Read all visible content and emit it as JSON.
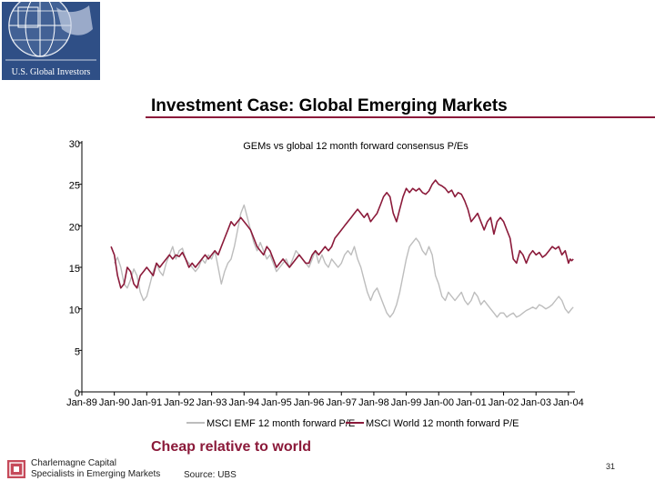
{
  "header": {
    "logo_text": "U.S. Global Investors",
    "title": "Investment Case: Global Emerging Markets"
  },
  "chart_data": {
    "type": "line",
    "title": "GEMs vs global 12 month forward consensus P/Es",
    "xlabel": "",
    "ylabel": "",
    "ylim": [
      0,
      30
    ],
    "yticks": [
      0,
      5,
      10,
      15,
      20,
      25,
      30
    ],
    "xticks": [
      "Jan-89",
      "Jan-90",
      "Jan-91",
      "Jan-92",
      "Jan-93",
      "Jan-94",
      "Jan-95",
      "Jan-96",
      "Jan-97",
      "Jan-98",
      "Jan-99",
      "Jan-00",
      "Jan-01",
      "Jan-02",
      "Jan-03",
      "Jan-04"
    ],
    "x_range": [
      1989.0,
      2004.2
    ],
    "grid": false,
    "legend_position": "bottom",
    "series": [
      {
        "name": "MSCI EMF 12 month forward P/E",
        "color": "#bdbdbd",
        "points": [
          [
            1990.0,
            15.5
          ],
          [
            1990.1,
            16.2
          ],
          [
            1990.2,
            15.0
          ],
          [
            1990.3,
            13.0
          ],
          [
            1990.4,
            12.5
          ],
          [
            1990.5,
            13.5
          ],
          [
            1990.6,
            14.8
          ],
          [
            1990.7,
            14.0
          ],
          [
            1990.8,
            12.0
          ],
          [
            1990.9,
            11.0
          ],
          [
            1991.0,
            11.5
          ],
          [
            1991.1,
            13.0
          ],
          [
            1991.2,
            14.5
          ],
          [
            1991.3,
            15.5
          ],
          [
            1991.4,
            14.5
          ],
          [
            1991.5,
            14.0
          ],
          [
            1991.6,
            15.5
          ],
          [
            1991.7,
            16.5
          ],
          [
            1991.8,
            17.5
          ],
          [
            1991.9,
            16.0
          ],
          [
            1992.0,
            17.0
          ],
          [
            1992.1,
            17.3
          ],
          [
            1992.2,
            16.0
          ],
          [
            1992.3,
            15.5
          ],
          [
            1992.4,
            15.0
          ],
          [
            1992.5,
            14.5
          ],
          [
            1992.6,
            15.0
          ],
          [
            1992.7,
            16.0
          ],
          [
            1992.8,
            15.5
          ],
          [
            1992.9,
            16.5
          ],
          [
            1993.0,
            16.0
          ],
          [
            1993.1,
            17.0
          ],
          [
            1993.2,
            15.0
          ],
          [
            1993.3,
            13.0
          ],
          [
            1993.4,
            14.5
          ],
          [
            1993.5,
            15.5
          ],
          [
            1993.6,
            16.0
          ],
          [
            1993.7,
            17.5
          ],
          [
            1993.8,
            19.5
          ],
          [
            1993.9,
            21.5
          ],
          [
            1994.0,
            22.5
          ],
          [
            1994.1,
            21.0
          ],
          [
            1994.2,
            19.5
          ],
          [
            1994.3,
            18.0
          ],
          [
            1994.4,
            17.0
          ],
          [
            1994.5,
            18.0
          ],
          [
            1994.6,
            17.0
          ],
          [
            1994.7,
            16.0
          ],
          [
            1994.8,
            16.5
          ],
          [
            1994.9,
            15.5
          ],
          [
            1995.0,
            14.5
          ],
          [
            1995.1,
            15.0
          ],
          [
            1995.2,
            15.5
          ],
          [
            1995.3,
            16.0
          ],
          [
            1995.4,
            15.0
          ],
          [
            1995.5,
            16.0
          ],
          [
            1995.6,
            17.0
          ],
          [
            1995.7,
            16.5
          ],
          [
            1995.8,
            16.0
          ],
          [
            1995.9,
            15.5
          ],
          [
            1996.0,
            15.0
          ],
          [
            1996.1,
            16.0
          ],
          [
            1996.2,
            17.0
          ],
          [
            1996.3,
            15.5
          ],
          [
            1996.4,
            16.5
          ],
          [
            1996.5,
            15.5
          ],
          [
            1996.6,
            15.0
          ],
          [
            1996.7,
            16.0
          ],
          [
            1996.8,
            15.5
          ],
          [
            1996.9,
            15.0
          ],
          [
            1997.0,
            15.5
          ],
          [
            1997.1,
            16.5
          ],
          [
            1997.2,
            17.0
          ],
          [
            1997.3,
            16.5
          ],
          [
            1997.4,
            17.5
          ],
          [
            1997.5,
            16.0
          ],
          [
            1997.6,
            15.0
          ],
          [
            1997.7,
            13.5
          ],
          [
            1997.8,
            12.0
          ],
          [
            1997.9,
            11.0
          ],
          [
            1998.0,
            12.0
          ],
          [
            1998.1,
            12.5
          ],
          [
            1998.2,
            11.5
          ],
          [
            1998.3,
            10.5
          ],
          [
            1998.4,
            9.5
          ],
          [
            1998.5,
            9.0
          ],
          [
            1998.6,
            9.5
          ],
          [
            1998.7,
            10.5
          ],
          [
            1998.8,
            12.0
          ],
          [
            1998.9,
            14.0
          ],
          [
            1999.0,
            16.0
          ],
          [
            1999.1,
            17.5
          ],
          [
            1999.2,
            18.0
          ],
          [
            1999.3,
            18.5
          ],
          [
            1999.4,
            18.0
          ],
          [
            1999.5,
            17.0
          ],
          [
            1999.6,
            16.5
          ],
          [
            1999.7,
            17.5
          ],
          [
            1999.8,
            16.5
          ],
          [
            1999.9,
            14.0
          ],
          [
            2000.0,
            13.0
          ],
          [
            2000.1,
            11.5
          ],
          [
            2000.2,
            11.0
          ],
          [
            2000.3,
            12.0
          ],
          [
            2000.4,
            11.5
          ],
          [
            2000.5,
            11.0
          ],
          [
            2000.6,
            11.5
          ],
          [
            2000.7,
            12.0
          ],
          [
            2000.8,
            11.0
          ],
          [
            2000.9,
            10.5
          ],
          [
            2001.0,
            11.0
          ],
          [
            2001.1,
            12.0
          ],
          [
            2001.2,
            11.5
          ],
          [
            2001.3,
            10.5
          ],
          [
            2001.4,
            11.0
          ],
          [
            2001.5,
            10.5
          ],
          [
            2001.6,
            10.0
          ],
          [
            2001.7,
            9.5
          ],
          [
            2001.8,
            9.0
          ],
          [
            2001.9,
            9.5
          ],
          [
            2002.0,
            9.5
          ],
          [
            2002.1,
            9.0
          ],
          [
            2002.2,
            9.3
          ],
          [
            2002.3,
            9.5
          ],
          [
            2002.4,
            9.0
          ],
          [
            2002.5,
            9.2
          ],
          [
            2002.6,
            9.5
          ],
          [
            2002.7,
            9.8
          ],
          [
            2002.8,
            10.0
          ],
          [
            2002.9,
            10.2
          ],
          [
            2003.0,
            10.0
          ],
          [
            2003.1,
            10.5
          ],
          [
            2003.2,
            10.3
          ],
          [
            2003.3,
            10.0
          ],
          [
            2003.4,
            10.2
          ],
          [
            2003.5,
            10.5
          ],
          [
            2003.6,
            11.0
          ],
          [
            2003.7,
            11.5
          ],
          [
            2003.8,
            11.0
          ],
          [
            2003.9,
            10.0
          ],
          [
            2004.0,
            9.5
          ],
          [
            2004.1,
            10.0
          ],
          [
            2004.15,
            10.2
          ]
        ]
      },
      {
        "name": "MSCI World 12 month forward P/E",
        "color": "#8b1a3a",
        "points": [
          [
            1989.9,
            17.5
          ],
          [
            1990.0,
            16.5
          ],
          [
            1990.1,
            14.0
          ],
          [
            1990.2,
            12.5
          ],
          [
            1990.3,
            13.0
          ],
          [
            1990.4,
            15.0
          ],
          [
            1990.5,
            14.5
          ],
          [
            1990.6,
            13.0
          ],
          [
            1990.7,
            12.5
          ],
          [
            1990.8,
            14.0
          ],
          [
            1990.9,
            14.5
          ],
          [
            1991.0,
            15.0
          ],
          [
            1991.1,
            14.5
          ],
          [
            1991.2,
            14.0
          ],
          [
            1991.3,
            15.5
          ],
          [
            1991.4,
            15.0
          ],
          [
            1991.5,
            15.5
          ],
          [
            1991.6,
            16.0
          ],
          [
            1991.7,
            16.5
          ],
          [
            1991.8,
            16.0
          ],
          [
            1991.9,
            16.5
          ],
          [
            1992.0,
            16.3
          ],
          [
            1992.1,
            16.8
          ],
          [
            1992.2,
            16.0
          ],
          [
            1992.3,
            15.0
          ],
          [
            1992.4,
            15.5
          ],
          [
            1992.5,
            15.0
          ],
          [
            1992.6,
            15.5
          ],
          [
            1992.7,
            16.0
          ],
          [
            1992.8,
            16.5
          ],
          [
            1992.9,
            16.0
          ],
          [
            1993.0,
            16.5
          ],
          [
            1993.1,
            17.0
          ],
          [
            1993.2,
            16.5
          ],
          [
            1993.3,
            17.5
          ],
          [
            1993.4,
            18.5
          ],
          [
            1993.5,
            19.5
          ],
          [
            1993.6,
            20.5
          ],
          [
            1993.7,
            20.0
          ],
          [
            1993.8,
            20.5
          ],
          [
            1993.9,
            21.0
          ],
          [
            1994.0,
            20.5
          ],
          [
            1994.1,
            20.0
          ],
          [
            1994.2,
            19.5
          ],
          [
            1994.3,
            18.5
          ],
          [
            1994.4,
            17.5
          ],
          [
            1994.5,
            17.0
          ],
          [
            1994.6,
            16.5
          ],
          [
            1994.7,
            17.5
          ],
          [
            1994.8,
            17.0
          ],
          [
            1994.9,
            16.0
          ],
          [
            1995.0,
            15.0
          ],
          [
            1995.1,
            15.5
          ],
          [
            1995.2,
            16.0
          ],
          [
            1995.3,
            15.5
          ],
          [
            1995.4,
            15.0
          ],
          [
            1995.5,
            15.5
          ],
          [
            1995.6,
            16.0
          ],
          [
            1995.7,
            16.5
          ],
          [
            1995.8,
            16.0
          ],
          [
            1995.9,
            15.5
          ],
          [
            1996.0,
            15.5
          ],
          [
            1996.1,
            16.5
          ],
          [
            1996.2,
            17.0
          ],
          [
            1996.3,
            16.5
          ],
          [
            1996.4,
            17.0
          ],
          [
            1996.5,
            17.5
          ],
          [
            1996.6,
            17.0
          ],
          [
            1996.7,
            17.5
          ],
          [
            1996.8,
            18.5
          ],
          [
            1996.9,
            19.0
          ],
          [
            1997.0,
            19.5
          ],
          [
            1997.1,
            20.0
          ],
          [
            1997.2,
            20.5
          ],
          [
            1997.3,
            21.0
          ],
          [
            1997.4,
            21.5
          ],
          [
            1997.5,
            22.0
          ],
          [
            1997.6,
            21.5
          ],
          [
            1997.7,
            21.0
          ],
          [
            1997.8,
            21.5
          ],
          [
            1997.9,
            20.5
          ],
          [
            1998.0,
            21.0
          ],
          [
            1998.1,
            21.5
          ],
          [
            1998.2,
            22.5
          ],
          [
            1998.3,
            23.5
          ],
          [
            1998.4,
            24.0
          ],
          [
            1998.5,
            23.5
          ],
          [
            1998.6,
            21.5
          ],
          [
            1998.7,
            20.5
          ],
          [
            1998.8,
            22.0
          ],
          [
            1998.9,
            23.5
          ],
          [
            1999.0,
            24.5
          ],
          [
            1999.1,
            24.0
          ],
          [
            1999.2,
            24.5
          ],
          [
            1999.3,
            24.2
          ],
          [
            1999.4,
            24.5
          ],
          [
            1999.5,
            24.0
          ],
          [
            1999.6,
            23.8
          ],
          [
            1999.7,
            24.2
          ],
          [
            1999.8,
            25.0
          ],
          [
            1999.9,
            25.5
          ],
          [
            2000.0,
            25.0
          ],
          [
            2000.1,
            24.8
          ],
          [
            2000.2,
            24.5
          ],
          [
            2000.3,
            24.0
          ],
          [
            2000.4,
            24.3
          ],
          [
            2000.5,
            23.5
          ],
          [
            2000.6,
            24.0
          ],
          [
            2000.7,
            23.8
          ],
          [
            2000.8,
            23.0
          ],
          [
            2000.9,
            22.0
          ],
          [
            2001.0,
            20.5
          ],
          [
            2001.1,
            21.0
          ],
          [
            2001.2,
            21.5
          ],
          [
            2001.3,
            20.5
          ],
          [
            2001.4,
            19.5
          ],
          [
            2001.5,
            20.5
          ],
          [
            2001.6,
            21.0
          ],
          [
            2001.7,
            19.0
          ],
          [
            2001.8,
            20.5
          ],
          [
            2001.9,
            21.0
          ],
          [
            2002.0,
            20.5
          ],
          [
            2002.1,
            19.5
          ],
          [
            2002.2,
            18.5
          ],
          [
            2002.3,
            16.0
          ],
          [
            2002.4,
            15.5
          ],
          [
            2002.5,
            17.0
          ],
          [
            2002.6,
            16.5
          ],
          [
            2002.7,
            15.5
          ],
          [
            2002.8,
            16.5
          ],
          [
            2002.9,
            17.0
          ],
          [
            2003.0,
            16.5
          ],
          [
            2003.1,
            16.8
          ],
          [
            2003.2,
            16.2
          ],
          [
            2003.3,
            16.5
          ],
          [
            2003.4,
            17.0
          ],
          [
            2003.5,
            17.5
          ],
          [
            2003.6,
            17.2
          ],
          [
            2003.7,
            17.5
          ],
          [
            2003.8,
            16.5
          ],
          [
            2003.9,
            17.0
          ],
          [
            2004.0,
            15.5
          ],
          [
            2004.05,
            16.0
          ],
          [
            2004.1,
            15.8
          ],
          [
            2004.15,
            16.0
          ]
        ]
      }
    ]
  },
  "footer": {
    "conclusion": "Cheap relative to world",
    "brand_line1": "Charlemagne Capital",
    "brand_line2": "Specialists in Emerging Markets",
    "source": "Source:  UBS",
    "page_number": "31"
  }
}
